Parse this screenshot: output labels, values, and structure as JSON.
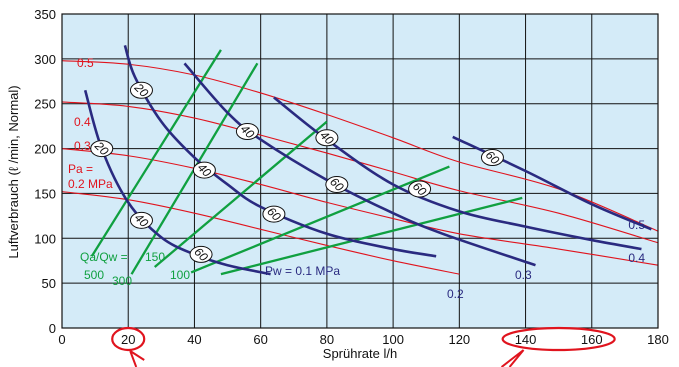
{
  "chart_data": {
    "type": "line",
    "title": "",
    "xlabel": "Sprührate l/h",
    "ylabel": "Luftverbrauch (ℓ /min, Normal)",
    "xlim": [
      0,
      180
    ],
    "ylim": [
      0,
      350
    ],
    "x_ticks": [
      "0",
      "20",
      "40",
      "60",
      "80",
      "100",
      "120",
      "140",
      "160",
      "180"
    ],
    "y_ticks": [
      "0",
      "50",
      "100",
      "150",
      "200",
      "250",
      "300",
      "350"
    ],
    "grid": true,
    "colors": {
      "background": "#d4ebf8",
      "grid": "#111111",
      "pa_lines": "#e0141e",
      "pw_lines": "#2a2a80",
      "ratio_lines": "#10a040",
      "highlight": "#e0141e",
      "water_label_fill": "#ffffff"
    },
    "highlighted_ticks": [
      "20",
      "140",
      "160"
    ],
    "series_pa": [
      {
        "name": "0.2",
        "label_text": "Pa =",
        "label_text2": "0.2 MPa",
        "x": [
          0,
          20,
          40,
          60,
          80,
          100,
          120
        ],
        "y": [
          152,
          143,
          128,
          110,
          92,
          75,
          60
        ]
      },
      {
        "name": "0.3",
        "label_text": "0.3",
        "x": [
          0,
          20,
          40,
          60,
          80,
          100,
          120,
          150,
          180
        ],
        "y": [
          200,
          192,
          178,
          160,
          140,
          122,
          105,
          88,
          70
        ]
      },
      {
        "name": "0.4",
        "label_text": "0.4",
        "x": [
          0,
          20,
          40,
          60,
          80,
          100,
          120,
          150,
          180
        ],
        "y": [
          252,
          247,
          234,
          215,
          195,
          174,
          153,
          128,
          95
        ]
      },
      {
        "name": "0.5",
        "label_text": "0.5",
        "x": [
          0,
          20,
          40,
          60,
          80,
          100,
          120,
          150,
          180
        ],
        "y": [
          298,
          294,
          282,
          262,
          238,
          212,
          185,
          155,
          108
        ]
      }
    ],
    "series_pw": [
      {
        "name": "0.1",
        "label_text": "Pw = 0.1 MPa",
        "x": [
          7,
          12,
          20,
          30,
          40,
          50,
          63
        ],
        "y": [
          265,
          200,
          140,
          101,
          82,
          70,
          60
        ],
        "marks": [
          {
            "t": "20",
            "x": 12,
            "y": 200
          },
          {
            "t": "40",
            "x": 24,
            "y": 120
          },
          {
            "t": "60",
            "x": 42,
            "y": 82
          }
        ]
      },
      {
        "name": "0.2",
        "label_text": "0.2",
        "x": [
          19,
          22,
          30,
          40,
          50,
          60,
          80,
          100,
          113
        ],
        "y": [
          315,
          280,
          230,
          190,
          160,
          135,
          105,
          88,
          80
        ],
        "marks": [
          {
            "t": "20",
            "x": 24,
            "y": 265
          },
          {
            "t": "40",
            "x": 43,
            "y": 176
          },
          {
            "t": "60",
            "x": 64,
            "y": 127
          }
        ]
      },
      {
        "name": "0.3",
        "label_text": "0.3",
        "x": [
          37,
          50,
          60,
          80,
          100,
          115,
          143
        ],
        "y": [
          295,
          240,
          210,
          165,
          128,
          105,
          70
        ],
        "marks": [
          {
            "t": "40",
            "x": 56,
            "y": 219
          },
          {
            "t": "60",
            "x": 83,
            "y": 160
          }
        ]
      },
      {
        "name": "0.4",
        "label_text": "0.4",
        "x": [
          64,
          80,
          100,
          120,
          140,
          160,
          175
        ],
        "y": [
          257,
          210,
          160,
          130,
          113,
          98,
          88
        ],
        "marks": [
          {
            "t": "40",
            "x": 80,
            "y": 212
          },
          {
            "t": "60",
            "x": 108,
            "y": 155
          }
        ]
      },
      {
        "name": "0.5",
        "label_text": "0.5",
        "x": [
          118,
          140,
          160,
          178
        ],
        "y": [
          213,
          175,
          138,
          110
        ],
        "marks": [
          {
            "t": "60",
            "x": 130,
            "y": 190
          }
        ]
      }
    ],
    "series_ratio": [
      {
        "name": "500",
        "label_text": "500",
        "x": [
          9,
          48
        ],
        "y": [
          80,
          310
        ]
      },
      {
        "name": "300",
        "label_text": "300",
        "x": [
          21,
          59
        ],
        "y": [
          60,
          295
        ]
      },
      {
        "name": "150",
        "label_text": "150",
        "x": [
          28,
          80
        ],
        "y": [
          68,
          230
        ]
      },
      {
        "name": "100",
        "label_text": "100",
        "x": [
          39,
          117
        ],
        "y": [
          62,
          180
        ]
      },
      {
        "name": "",
        "label_text": "",
        "x": [
          48,
          139
        ],
        "y": [
          60,
          145
        ]
      }
    ],
    "ratio_label": "Qa/Qw ="
  }
}
